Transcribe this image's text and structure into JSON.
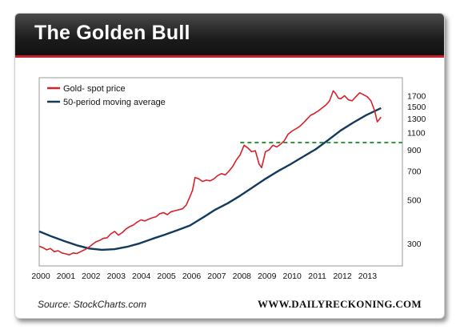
{
  "banner": {
    "title": "The Golden Bull"
  },
  "source": "Source: StockCharts.com",
  "brand": "WWW.DAILYRECKONING.COM",
  "colors": {
    "gold": "#d8202b",
    "moving_average": "#123a5c",
    "resistance": "#2e9b3a",
    "banner_accent": "#c8202a"
  },
  "chart_data": {
    "type": "line",
    "title": "",
    "xlabel": "",
    "ylabel": "",
    "y_scale": "log",
    "ylim": [
      230,
      2100
    ],
    "xlim": [
      2000.0,
      2014.45
    ],
    "x_ticks": [
      "2000",
      "2001",
      "2002",
      "2003",
      "2004",
      "2005",
      "2006",
      "2007",
      "2008",
      "2009",
      "2010",
      "2011",
      "2012",
      "2013"
    ],
    "y_ticks": [
      300,
      500,
      700,
      900,
      1100,
      1300,
      1500,
      1700
    ],
    "legend_position": "top-left",
    "grid": false,
    "series": [
      {
        "name": "Gold- spot price",
        "x": [
          2000.0,
          2000.15,
          2000.3,
          2000.45,
          2000.6,
          2000.75,
          2000.9,
          2001.05,
          2001.2,
          2001.35,
          2001.5,
          2001.65,
          2001.8,
          2001.95,
          2002.1,
          2002.25,
          2002.4,
          2002.55,
          2002.7,
          2002.85,
          2003.0,
          2003.15,
          2003.3,
          2003.45,
          2003.6,
          2003.75,
          2003.9,
          2004.05,
          2004.2,
          2004.35,
          2004.5,
          2004.65,
          2004.8,
          2004.95,
          2005.1,
          2005.25,
          2005.4,
          2005.55,
          2005.7,
          2005.85,
          2006.0,
          2006.1,
          2006.2,
          2006.35,
          2006.5,
          2006.65,
          2006.8,
          2006.95,
          2007.1,
          2007.25,
          2007.4,
          2007.55,
          2007.7,
          2007.85,
          2008.0,
          2008.15,
          2008.3,
          2008.45,
          2008.6,
          2008.75,
          2008.85,
          2009.0,
          2009.15,
          2009.3,
          2009.45,
          2009.6,
          2009.75,
          2009.9,
          2010.05,
          2010.2,
          2010.35,
          2010.5,
          2010.65,
          2010.8,
          2010.95,
          2011.1,
          2011.25,
          2011.4,
          2011.55,
          2011.7,
          2011.8,
          2011.9,
          2012.0,
          2012.15,
          2012.3,
          2012.45,
          2012.6,
          2012.75,
          2012.9,
          2013.05,
          2013.2,
          2013.35,
          2013.45,
          2013.6
        ],
        "values": [
          290,
          285,
          278,
          282,
          272,
          275,
          268,
          265,
          262,
          268,
          266,
          272,
          278,
          285,
          295,
          305,
          310,
          318,
          320,
          335,
          345,
          330,
          340,
          355,
          365,
          372,
          385,
          395,
          390,
          398,
          405,
          410,
          425,
          430,
          420,
          435,
          440,
          445,
          450,
          470,
          520,
          560,
          650,
          640,
          620,
          630,
          625,
          640,
          665,
          680,
          670,
          700,
          740,
          800,
          850,
          950,
          920,
          880,
          890,
          760,
          730,
          880,
          900,
          950,
          930,
          960,
          1000,
          1080,
          1120,
          1150,
          1180,
          1230,
          1290,
          1350,
          1380,
          1420,
          1470,
          1520,
          1600,
          1800,
          1740,
          1650,
          1640,
          1700,
          1620,
          1600,
          1680,
          1760,
          1720,
          1680,
          1600,
          1420,
          1250,
          1320
        ]
      },
      {
        "name": "50-period moving average",
        "x": [
          2000.0,
          2000.5,
          2001.0,
          2001.5,
          2002.0,
          2002.5,
          2003.0,
          2003.5,
          2004.0,
          2004.5,
          2005.0,
          2005.5,
          2006.0,
          2006.5,
          2007.0,
          2007.5,
          2008.0,
          2008.5,
          2009.0,
          2009.5,
          2010.0,
          2010.5,
          2011.0,
          2011.5,
          2012.0,
          2012.5,
          2013.0,
          2013.5,
          2013.6
        ],
        "values": [
          345,
          325,
          308,
          293,
          282,
          278,
          280,
          288,
          300,
          316,
          332,
          350,
          370,
          405,
          445,
          480,
          525,
          580,
          640,
          700,
          760,
          830,
          905,
          1010,
          1130,
          1240,
          1350,
          1450,
          1470
        ]
      }
    ],
    "reference_lines": [
      {
        "style": "dashed",
        "y": 980,
        "x_start": 2008.0,
        "x_end": 2014.45
      }
    ]
  }
}
